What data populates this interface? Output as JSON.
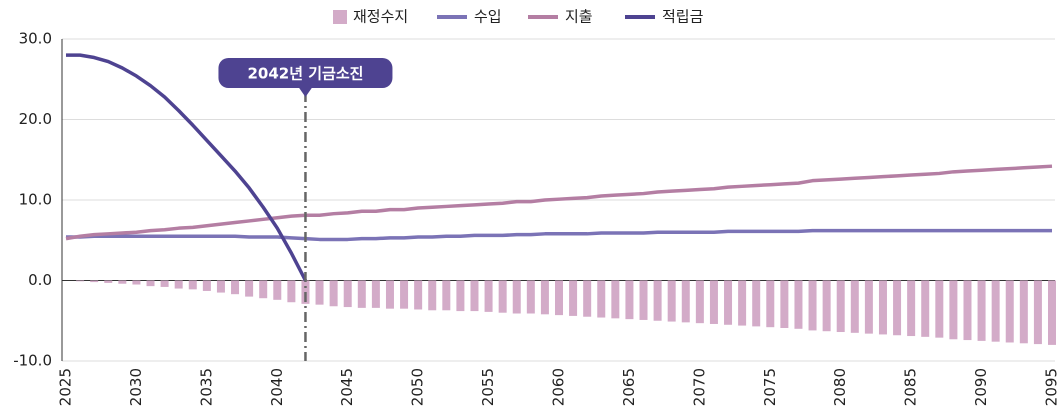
{
  "chart_data": {
    "type": "bar-line",
    "categories": [
      "2025",
      null,
      null,
      null,
      null,
      "2030",
      null,
      null,
      null,
      null,
      "2035",
      null,
      null,
      null,
      null,
      "2040",
      null,
      null,
      null,
      null,
      "2045",
      null,
      null,
      null,
      null,
      "2050",
      null,
      null,
      null,
      null,
      "2055",
      null,
      null,
      null,
      null,
      "2060",
      null,
      null,
      null,
      null,
      "2065",
      null,
      null,
      null,
      null,
      "2070",
      null,
      null,
      null,
      null,
      "2075",
      null,
      null,
      null,
      null,
      "2080",
      null,
      null,
      null,
      null,
      "2085",
      null,
      null,
      null,
      null,
      "2090",
      null,
      null,
      null,
      null,
      "2095"
    ],
    "series": [
      {
        "name": "재정수지",
        "type": "bar",
        "color": "#d3abc8",
        "values": [
          0.0,
          -0.1,
          -0.2,
          -0.3,
          -0.4,
          -0.5,
          -0.7,
          -0.8,
          -1.0,
          -1.1,
          -1.3,
          -1.5,
          -1.7,
          -2.0,
          -2.2,
          -2.4,
          -2.7,
          -2.9,
          -3.0,
          -3.2,
          -3.3,
          -3.4,
          -3.4,
          -3.5,
          -3.5,
          -3.6,
          -3.7,
          -3.7,
          -3.8,
          -3.8,
          -3.9,
          -4.0,
          -4.1,
          -4.1,
          -4.2,
          -4.3,
          -4.4,
          -4.5,
          -4.6,
          -4.7,
          -4.8,
          -4.9,
          -5.0,
          -5.1,
          -5.2,
          -5.3,
          -5.4,
          -5.5,
          -5.6,
          -5.7,
          -5.8,
          -5.9,
          -6.0,
          -6.2,
          -6.3,
          -6.4,
          -6.5,
          -6.6,
          -6.7,
          -6.8,
          -6.9,
          -7.0,
          -7.1,
          -7.3,
          -7.4,
          -7.5,
          -7.6,
          -7.7,
          -7.8,
          -7.9,
          -8.0
        ]
      },
      {
        "name": "수입",
        "type": "line",
        "color": "#7b73b6",
        "values": [
          5.4,
          5.4,
          5.5,
          5.5,
          5.5,
          5.5,
          5.5,
          5.5,
          5.5,
          5.5,
          5.5,
          5.5,
          5.5,
          5.4,
          5.4,
          5.4,
          5.3,
          5.2,
          5.1,
          5.1,
          5.1,
          5.2,
          5.2,
          5.3,
          5.3,
          5.4,
          5.4,
          5.5,
          5.5,
          5.6,
          5.6,
          5.6,
          5.7,
          5.7,
          5.8,
          5.8,
          5.8,
          5.8,
          5.9,
          5.9,
          5.9,
          5.9,
          6.0,
          6.0,
          6.0,
          6.0,
          6.0,
          6.1,
          6.1,
          6.1,
          6.1,
          6.1,
          6.1,
          6.2,
          6.2,
          6.2,
          6.2,
          6.2,
          6.2,
          6.2,
          6.2,
          6.2,
          6.2,
          6.2,
          6.2,
          6.2,
          6.2,
          6.2,
          6.2,
          6.2,
          6.2
        ]
      },
      {
        "name": "지출",
        "type": "line",
        "color": "#b47ea3",
        "values": [
          5.2,
          5.5,
          5.7,
          5.8,
          5.9,
          6.0,
          6.2,
          6.3,
          6.5,
          6.6,
          6.8,
          7.0,
          7.2,
          7.4,
          7.6,
          7.8,
          8.0,
          8.1,
          8.1,
          8.3,
          8.4,
          8.6,
          8.6,
          8.8,
          8.8,
          9.0,
          9.1,
          9.2,
          9.3,
          9.4,
          9.5,
          9.6,
          9.8,
          9.8,
          10.0,
          10.1,
          10.2,
          10.3,
          10.5,
          10.6,
          10.7,
          10.8,
          11.0,
          11.1,
          11.2,
          11.3,
          11.4,
          11.6,
          11.7,
          11.8,
          11.9,
          12.0,
          12.1,
          12.4,
          12.5,
          12.6,
          12.7,
          12.8,
          12.9,
          13.0,
          13.1,
          13.2,
          13.3,
          13.5,
          13.6,
          13.7,
          13.8,
          13.9,
          14.0,
          14.1,
          14.2
        ]
      },
      {
        "name": "적립금",
        "type": "line",
        "color": "#4e4391",
        "values": [
          28.0,
          28.0,
          27.7,
          27.2,
          26.4,
          25.4,
          24.2,
          22.8,
          21.1,
          19.3,
          17.4,
          15.5,
          13.6,
          11.5,
          9.1,
          6.5,
          3.4,
          0.0,
          null,
          null,
          null,
          null,
          null,
          null,
          null,
          null,
          null,
          null,
          null,
          null,
          null,
          null,
          null,
          null,
          null,
          null,
          null,
          null,
          null,
          null,
          null,
          null,
          null,
          null,
          null,
          null,
          null,
          null,
          null,
          null,
          null,
          null,
          null,
          null,
          null,
          null,
          null,
          null,
          null,
          null,
          null,
          null,
          null,
          null,
          null,
          null,
          null,
          null,
          null,
          null,
          null
        ]
      }
    ],
    "ylim": [
      -10,
      30
    ],
    "yticks": [
      {
        "value": -10,
        "label": "-10.0"
      },
      {
        "value": 0,
        "label": "0.0"
      },
      {
        "value": 10,
        "label": "10.0"
      },
      {
        "value": 20,
        "label": "20.0"
      },
      {
        "value": 30,
        "label": "30.0"
      }
    ],
    "grid": true,
    "legend": "top",
    "annotation": {
      "text": "2042년 기금소진",
      "x": 2042,
      "color": "#4e4391"
    }
  }
}
